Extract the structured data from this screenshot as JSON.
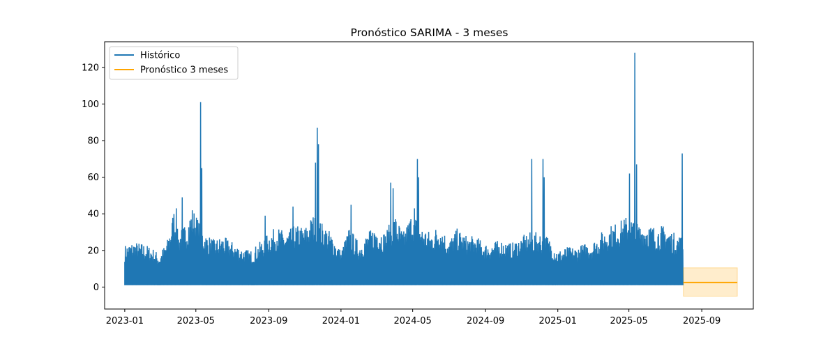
{
  "chart_data": {
    "type": "line",
    "title": "Pronóstico SARIMA - 3 meses",
    "xlabel": "",
    "ylabel": "",
    "x_tick_labels": [
      "2023-01",
      "2023-05",
      "2023-09",
      "2024-01",
      "2024-05",
      "2024-09",
      "2025-01",
      "2025-05",
      "2025-09"
    ],
    "x_ticks": [
      "2023-01-01",
      "2023-05-01",
      "2023-09-01",
      "2024-01-01",
      "2024-05-01",
      "2024-09-01",
      "2025-01-01",
      "2025-05-01",
      "2025-09-01"
    ],
    "xlim": [
      "2022-11-28",
      "2025-11-27"
    ],
    "ylim": [
      -12,
      134
    ],
    "y_ticks": [
      0,
      20,
      40,
      60,
      80,
      100,
      120
    ],
    "legend_position": "upper-left",
    "grid": false,
    "series": [
      {
        "name": "Histórico",
        "color": "#1f77b4",
        "x_start": "2023-01-01",
        "x_end": "2025-07-31",
        "baseline": 1,
        "envelope": [
          [
            "2023-01-01",
            23
          ],
          [
            "2023-01-15",
            25
          ],
          [
            "2023-02-01",
            24
          ],
          [
            "2023-02-15",
            22
          ],
          [
            "2023-03-01",
            18
          ],
          [
            "2023-03-15",
            27
          ],
          [
            "2023-03-25",
            43
          ],
          [
            "2023-04-01",
            30
          ],
          [
            "2023-04-15",
            35
          ],
          [
            "2023-04-25",
            44
          ],
          [
            "2023-05-01",
            40
          ],
          [
            "2023-05-15",
            30
          ],
          [
            "2023-06-01",
            26
          ],
          [
            "2023-06-15",
            28
          ],
          [
            "2023-07-01",
            25
          ],
          [
            "2023-07-15",
            22
          ],
          [
            "2023-08-01",
            20
          ],
          [
            "2023-08-15",
            24
          ],
          [
            "2023-09-01",
            30
          ],
          [
            "2023-09-15",
            33
          ],
          [
            "2023-10-01",
            30
          ],
          [
            "2023-10-15",
            34
          ],
          [
            "2023-11-01",
            33
          ],
          [
            "2023-11-15",
            40
          ],
          [
            "2023-12-01",
            35
          ],
          [
            "2023-12-15",
            30
          ],
          [
            "2024-01-01",
            20
          ],
          [
            "2024-01-15",
            33
          ],
          [
            "2024-02-01",
            24
          ],
          [
            "2024-02-15",
            30
          ],
          [
            "2024-03-01",
            34
          ],
          [
            "2024-03-15",
            30
          ],
          [
            "2024-04-01",
            40
          ],
          [
            "2024-04-15",
            30
          ],
          [
            "2024-05-01",
            42
          ],
          [
            "2024-05-15",
            34
          ],
          [
            "2024-06-01",
            30
          ],
          [
            "2024-06-15",
            35
          ],
          [
            "2024-07-01",
            26
          ],
          [
            "2024-07-15",
            32
          ],
          [
            "2024-08-01",
            28
          ],
          [
            "2024-08-15",
            28
          ],
          [
            "2024-09-01",
            24
          ],
          [
            "2024-09-15",
            25
          ],
          [
            "2024-10-01",
            26
          ],
          [
            "2024-10-15",
            24
          ],
          [
            "2024-11-01",
            28
          ],
          [
            "2024-11-15",
            30
          ],
          [
            "2024-12-01",
            30
          ],
          [
            "2024-12-15",
            28
          ],
          [
            "2025-01-01",
            20
          ],
          [
            "2025-01-15",
            22
          ],
          [
            "2025-02-01",
            22
          ],
          [
            "2025-02-15",
            24
          ],
          [
            "2025-03-01",
            25
          ],
          [
            "2025-03-15",
            30
          ],
          [
            "2025-04-01",
            34
          ],
          [
            "2025-04-15",
            36
          ],
          [
            "2025-05-01",
            40
          ],
          [
            "2025-05-15",
            35
          ],
          [
            "2025-06-01",
            35
          ],
          [
            "2025-06-15",
            33
          ],
          [
            "2025-07-01",
            34
          ],
          [
            "2025-07-15",
            30
          ],
          [
            "2025-07-31",
            28
          ]
        ],
        "peaks": [
          [
            "2023-03-29",
            43
          ],
          [
            "2023-04-08",
            49
          ],
          [
            "2023-05-09",
            101
          ],
          [
            "2023-05-11",
            65
          ],
          [
            "2023-08-26",
            39
          ],
          [
            "2023-10-12",
            44
          ],
          [
            "2023-11-19",
            68
          ],
          [
            "2023-11-22",
            87
          ],
          [
            "2023-11-24",
            78
          ],
          [
            "2024-01-18",
            45
          ],
          [
            "2024-03-25",
            57
          ],
          [
            "2024-03-29",
            54
          ],
          [
            "2024-05-04",
            43
          ],
          [
            "2024-05-09",
            70
          ],
          [
            "2024-05-11",
            60
          ],
          [
            "2024-11-18",
            70
          ],
          [
            "2024-12-07",
            70
          ],
          [
            "2024-12-09",
            60
          ],
          [
            "2025-05-02",
            62
          ],
          [
            "2025-05-11",
            128
          ],
          [
            "2025-05-14",
            67
          ],
          [
            "2025-07-30",
            73
          ]
        ]
      },
      {
        "name": "Pronóstico 3 meses",
        "color": "#ffa500",
        "x": [
          "2025-08-01",
          "2025-10-31"
        ],
        "values": [
          2.5,
          2.5
        ],
        "confidence_interval": {
          "lower": -5,
          "upper": 10.5,
          "color": "#ffa500"
        }
      }
    ]
  }
}
